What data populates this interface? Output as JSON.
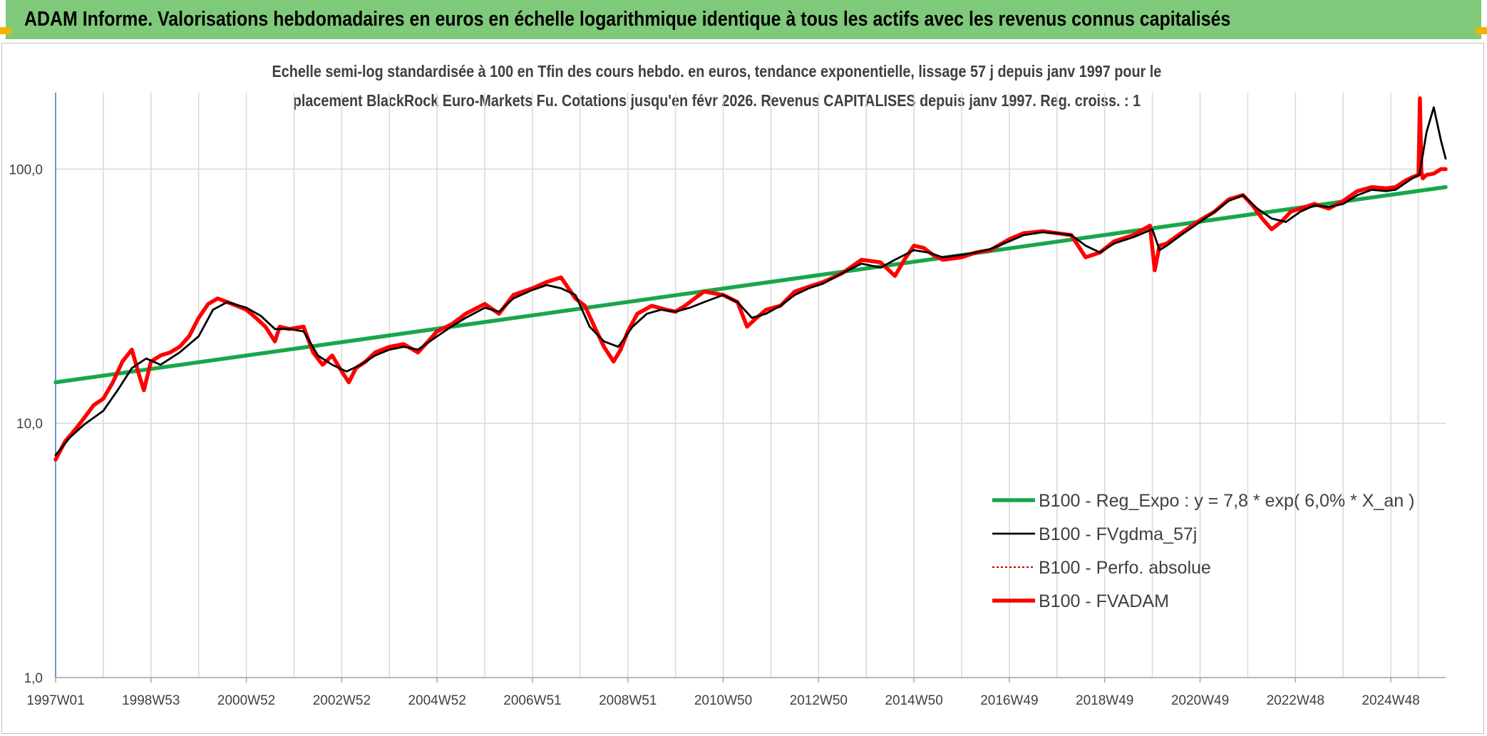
{
  "banner": {
    "title": "ADAM Informe. Valorisations hebdomadaires en euros en échelle logarithmique identique à tous les actifs avec les revenus connus capitalisés"
  },
  "colors": {
    "banner_bg": "#7fc97a",
    "corner_accent": "#f0b400",
    "regression": "#19a64a",
    "smoothed": "#000000",
    "absolute": "#c00000",
    "adam": "#ff0000",
    "grid": "#d9d9d9"
  },
  "chart_data": {
    "type": "line",
    "title_lines": [
      "Echelle semi-log standardisée à 100 en Tfin des cours hebdo. en euros, tendance exponentielle, lissage 57 j depuis janv 1997 pour le",
      "placement BlackRock Euro-Markets Fu. Cotations jusqu'en févr 2026. Revenus CAPITALISES depuis janv 1997. Reg. croiss. : 1"
    ],
    "y_scale": "log",
    "ylim": [
      1,
      200
    ],
    "y_ticks": [
      {
        "value": 1,
        "label": "1,0"
      },
      {
        "value": 10,
        "label": "10,0"
      },
      {
        "value": 100,
        "label": "100,0"
      }
    ],
    "xlim": [
      1997.0,
      2026.15
    ],
    "x_ticks": [
      {
        "value": 1997.0,
        "label": "1997W01"
      },
      {
        "value": 1999.0,
        "label": "1998W53"
      },
      {
        "value": 2001.0,
        "label": "2000W52"
      },
      {
        "value": 2003.0,
        "label": "2002W52"
      },
      {
        "value": 2005.0,
        "label": "2004W52"
      },
      {
        "value": 2007.0,
        "label": "2006W51"
      },
      {
        "value": 2009.0,
        "label": "2008W51"
      },
      {
        "value": 2011.0,
        "label": "2010W50"
      },
      {
        "value": 2013.0,
        "label": "2012W50"
      },
      {
        "value": 2015.0,
        "label": "2014W50"
      },
      {
        "value": 2017.0,
        "label": "2016W49"
      },
      {
        "value": 2019.0,
        "label": "2018W49"
      },
      {
        "value": 2021.0,
        "label": "2020W49"
      },
      {
        "value": 2023.0,
        "label": "2022W48"
      },
      {
        "value": 2025.0,
        "label": "2024W48"
      }
    ],
    "grid": true,
    "legend_position": "bottom-right",
    "series": [
      {
        "name": "B100 - Reg_Expo : y = 7,8 * exp( 6,0% *  X_an )",
        "key": "regression",
        "style": "solid-thick",
        "x": [
          1997.0,
          2026.15
        ],
        "y": [
          14.5,
          85.0
        ]
      },
      {
        "name": "B100 - FVgdma_57j",
        "key": "smoothed",
        "style": "solid",
        "x": [
          1997.0,
          1997.3,
          1997.6,
          1998.0,
          1998.3,
          1998.6,
          1998.9,
          1999.2,
          1999.6,
          2000.0,
          2000.3,
          2000.6,
          2001.0,
          2001.3,
          2001.6,
          2001.9,
          2002.2,
          2002.5,
          2002.8,
          2003.1,
          2003.4,
          2003.7,
          2004.0,
          2004.3,
          2004.6,
          2005.0,
          2005.3,
          2005.6,
          2006.0,
          2006.3,
          2006.6,
          2007.0,
          2007.3,
          2007.6,
          2007.9,
          2008.2,
          2008.5,
          2008.8,
          2009.1,
          2009.4,
          2009.7,
          2010.0,
          2010.3,
          2010.6,
          2011.0,
          2011.3,
          2011.6,
          2011.9,
          2012.2,
          2012.5,
          2012.8,
          2013.1,
          2013.5,
          2013.9,
          2014.3,
          2014.6,
          2015.0,
          2015.3,
          2015.6,
          2016.0,
          2016.3,
          2016.6,
          2017.0,
          2017.3,
          2017.7,
          2018.0,
          2018.3,
          2018.6,
          2018.9,
          2019.2,
          2019.6,
          2020.0,
          2020.15,
          2020.3,
          2020.6,
          2021.0,
          2021.3,
          2021.6,
          2021.9,
          2022.2,
          2022.5,
          2022.8,
          2023.1,
          2023.4,
          2023.7,
          2024.0,
          2024.3,
          2024.6,
          2024.9,
          2025.1,
          2025.3,
          2025.45,
          2025.6,
          2025.75,
          2025.9,
          2026.05,
          2026.15
        ],
        "y": [
          7.5,
          8.8,
          9.9,
          11.2,
          13.5,
          16.5,
          18.0,
          17.0,
          19.0,
          22.0,
          28.0,
          30.0,
          28.5,
          26.5,
          23.5,
          23.5,
          23.0,
          18.5,
          17.0,
          16.0,
          17.0,
          18.5,
          19.5,
          20.0,
          19.5,
          22.0,
          24.0,
          26.0,
          28.5,
          27.5,
          31.0,
          33.5,
          35.0,
          34.0,
          32.0,
          24.0,
          21.0,
          20.0,
          24.0,
          27.0,
          28.0,
          27.5,
          28.5,
          30.0,
          32.0,
          30.0,
          26.0,
          27.0,
          29.0,
          32.0,
          34.0,
          35.5,
          39.0,
          42.5,
          41.0,
          44.0,
          48.0,
          47.0,
          45.0,
          46.0,
          47.0,
          48.5,
          52.0,
          55.0,
          56.5,
          56.0,
          55.0,
          50.0,
          47.0,
          51.0,
          54.0,
          58.0,
          48.0,
          50.0,
          55.0,
          62.0,
          68.0,
          75.0,
          79.0,
          70.0,
          64.0,
          62.0,
          68.0,
          72.0,
          71.0,
          73.0,
          79.0,
          83.0,
          82.0,
          83.0,
          88.0,
          92.0,
          95.0,
          140.0,
          175.0,
          130.0,
          110.0
        ]
      },
      {
        "name": "B100 - Perfo. absolue",
        "key": "absolute",
        "style": "dotted",
        "x": [],
        "y": []
      },
      {
        "name": "B100 - FVADAM",
        "key": "adam",
        "style": "solid-thick",
        "x": [
          1997.0,
          1997.2,
          1997.4,
          1997.6,
          1997.8,
          1998.0,
          1998.2,
          1998.4,
          1998.6,
          1998.75,
          1998.85,
          1999.0,
          1999.2,
          1999.4,
          1999.6,
          1999.8,
          2000.0,
          2000.2,
          2000.4,
          2000.6,
          2000.8,
          2001.0,
          2001.2,
          2001.4,
          2001.6,
          2001.7,
          2001.9,
          2002.2,
          2002.4,
          2002.6,
          2002.8,
          2003.0,
          2003.15,
          2003.3,
          2003.5,
          2003.7,
          2004.0,
          2004.3,
          2004.6,
          2005.0,
          2005.3,
          2005.6,
          2006.0,
          2006.3,
          2006.6,
          2007.0,
          2007.3,
          2007.6,
          2007.9,
          2008.1,
          2008.3,
          2008.5,
          2008.7,
          2008.85,
          2009.0,
          2009.2,
          2009.5,
          2009.8,
          2010.0,
          2010.2,
          2010.4,
          2010.6,
          2011.0,
          2011.3,
          2011.5,
          2011.7,
          2011.9,
          2012.2,
          2012.5,
          2012.8,
          2013.1,
          2013.5,
          2013.9,
          2014.3,
          2014.6,
          2014.8,
          2015.0,
          2015.2,
          2015.4,
          2015.6,
          2016.0,
          2016.3,
          2016.6,
          2017.0,
          2017.3,
          2017.7,
          2018.0,
          2018.3,
          2018.6,
          2018.9,
          2019.2,
          2019.6,
          2019.95,
          2020.05,
          2020.15,
          2020.3,
          2020.6,
          2021.0,
          2021.3,
          2021.6,
          2021.9,
          2022.1,
          2022.3,
          2022.5,
          2022.7,
          2022.9,
          2023.1,
          2023.4,
          2023.7,
          2024.0,
          2024.3,
          2024.6,
          2024.9,
          2025.1,
          2025.3,
          2025.45,
          2025.58,
          2025.61,
          2025.64,
          2025.67,
          2025.75,
          2025.9,
          2026.05,
          2026.15
        ],
        "y": [
          7.2,
          8.5,
          9.4,
          10.5,
          11.8,
          12.5,
          14.5,
          17.5,
          19.5,
          15.5,
          13.5,
          17.5,
          18.5,
          19.0,
          20.0,
          22.0,
          26.0,
          29.5,
          31.0,
          30.0,
          29.0,
          28.0,
          26.0,
          24.0,
          21.0,
          24.0,
          23.5,
          24.0,
          19.0,
          17.0,
          18.5,
          16.0,
          14.5,
          16.5,
          17.5,
          19.0,
          20.0,
          20.5,
          19.0,
          23.0,
          24.5,
          27.0,
          29.5,
          27.0,
          32.0,
          34.0,
          36.0,
          37.5,
          31.0,
          29.0,
          24.0,
          20.0,
          17.5,
          19.5,
          23.0,
          27.0,
          29.0,
          28.0,
          27.5,
          29.0,
          31.0,
          33.0,
          32.0,
          30.0,
          24.0,
          26.0,
          28.0,
          29.0,
          33.0,
          34.5,
          36.0,
          39.0,
          44.0,
          43.0,
          38.0,
          44.0,
          50.0,
          49.0,
          46.0,
          44.0,
          45.0,
          47.0,
          48.0,
          53.0,
          56.0,
          57.0,
          56.0,
          55.0,
          45.0,
          47.0,
          52.0,
          55.0,
          60.0,
          40.0,
          50.0,
          51.0,
          56.0,
          63.0,
          68.0,
          76.0,
          79.0,
          72.0,
          64.0,
          58.0,
          62.0,
          68.0,
          70.0,
          73.0,
          70.0,
          75.0,
          82.0,
          85.0,
          84.0,
          85.0,
          90.0,
          93.0,
          95.0,
          190.0,
          98.0,
          92.0,
          95.0,
          96.0,
          100.0,
          100.0
        ]
      }
    ]
  }
}
